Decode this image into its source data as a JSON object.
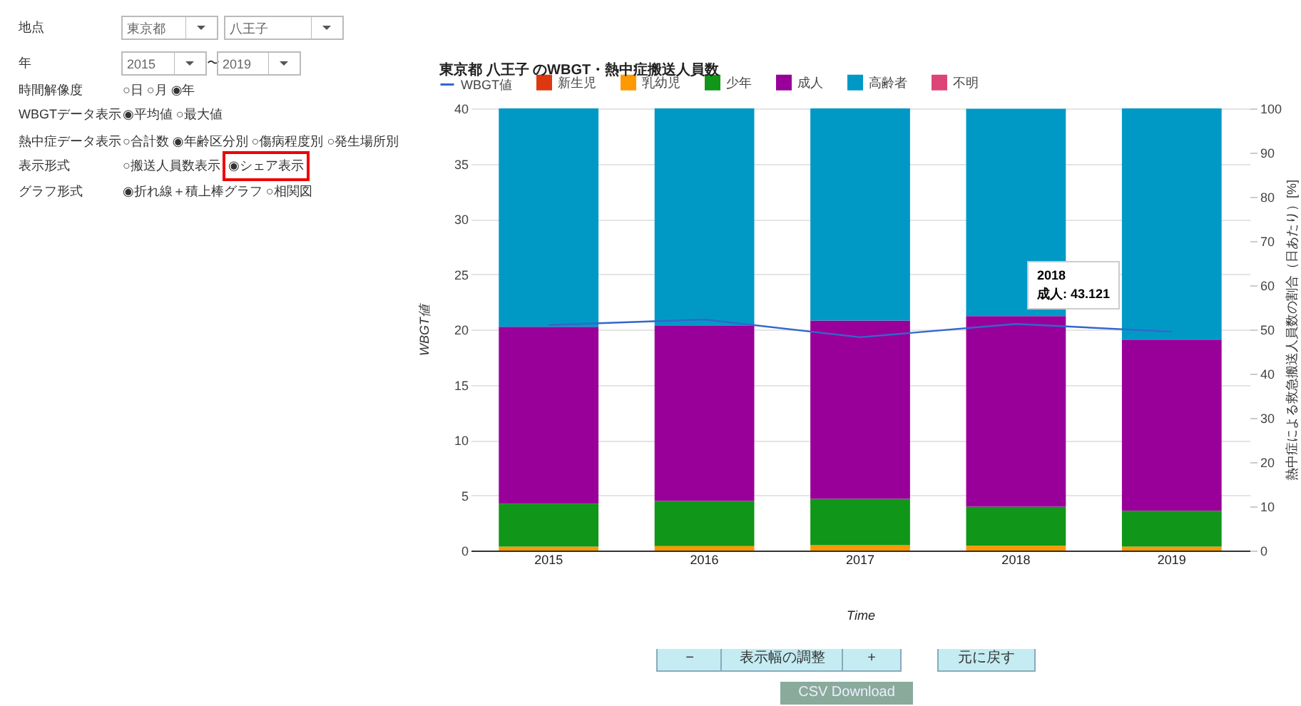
{
  "chart_data": {
    "type": "bar",
    "stacked": true,
    "title": "東京都 八王子 のWBGT・熱中症搬送人員数",
    "xlabel": "Time",
    "ylabel": "WBGT値",
    "y2label": "熱中症による救急搬送人員数の割合（日あたり）[%]",
    "categories": [
      "2015",
      "2016",
      "2017",
      "2018",
      "2019"
    ],
    "series": [
      {
        "name": "WBGT値",
        "type": "line",
        "axis": "y",
        "color": "#3366cc",
        "values": [
          20.4,
          20.9,
          19.3,
          20.5,
          19.8
        ]
      },
      {
        "name": "新生児",
        "axis": "y2",
        "color": "#dc3912",
        "values": [
          0,
          0,
          0,
          0,
          0
        ]
      },
      {
        "name": "乳幼児",
        "axis": "y2",
        "color": "#ff9900",
        "values": [
          0.9,
          1.0,
          1.2,
          1.1,
          0.9
        ]
      },
      {
        "name": "少年",
        "axis": "y2",
        "color": "#109618",
        "values": [
          9.7,
          10.2,
          10.5,
          8.8,
          8.1
        ]
      },
      {
        "name": "成人",
        "axis": "y2",
        "color": "#990099",
        "values": [
          40.0,
          39.6,
          40.3,
          43.121,
          38.7
        ]
      },
      {
        "name": "高齢者",
        "axis": "y2",
        "color": "#0099c6",
        "values": [
          49.4,
          49.2,
          48.0,
          46.9,
          52.3
        ]
      },
      {
        "name": "不明",
        "axis": "y2",
        "color": "#dd4477",
        "values": [
          0,
          0,
          0,
          0,
          0
        ]
      }
    ],
    "ylim": [
      0,
      40
    ],
    "yticks": [
      0,
      5,
      10,
      15,
      20,
      25,
      30,
      35,
      40
    ],
    "y2lim": [
      0,
      100
    ],
    "y2ticks": [
      0,
      10,
      20,
      30,
      40,
      50,
      60,
      70,
      80,
      90,
      100
    ],
    "grid": "y",
    "legend": "top",
    "annotations": [
      "地点",
      "東京都",
      "八王子",
      "年",
      "2015",
      "〜",
      "2019",
      "時間解像度",
      "○日 ○月 ◉年",
      "WBGTデータ表示",
      "◉平均値 ○最大値",
      "熱中症データ表示",
      "○合計数 ◉年齢区分別 ○傷病程度別 ○発生場所別",
      "表示形式",
      "○搬送人員数表示",
      "◉シェア表示",
      "グラフ形式",
      "◉折れ線＋積上棒グラフ ○相関図",
      "−",
      "表示幅の調整",
      "+",
      "元に戻す",
      "CSV Download",
      "2018\n成人: 43.121"
    ]
  }
}
